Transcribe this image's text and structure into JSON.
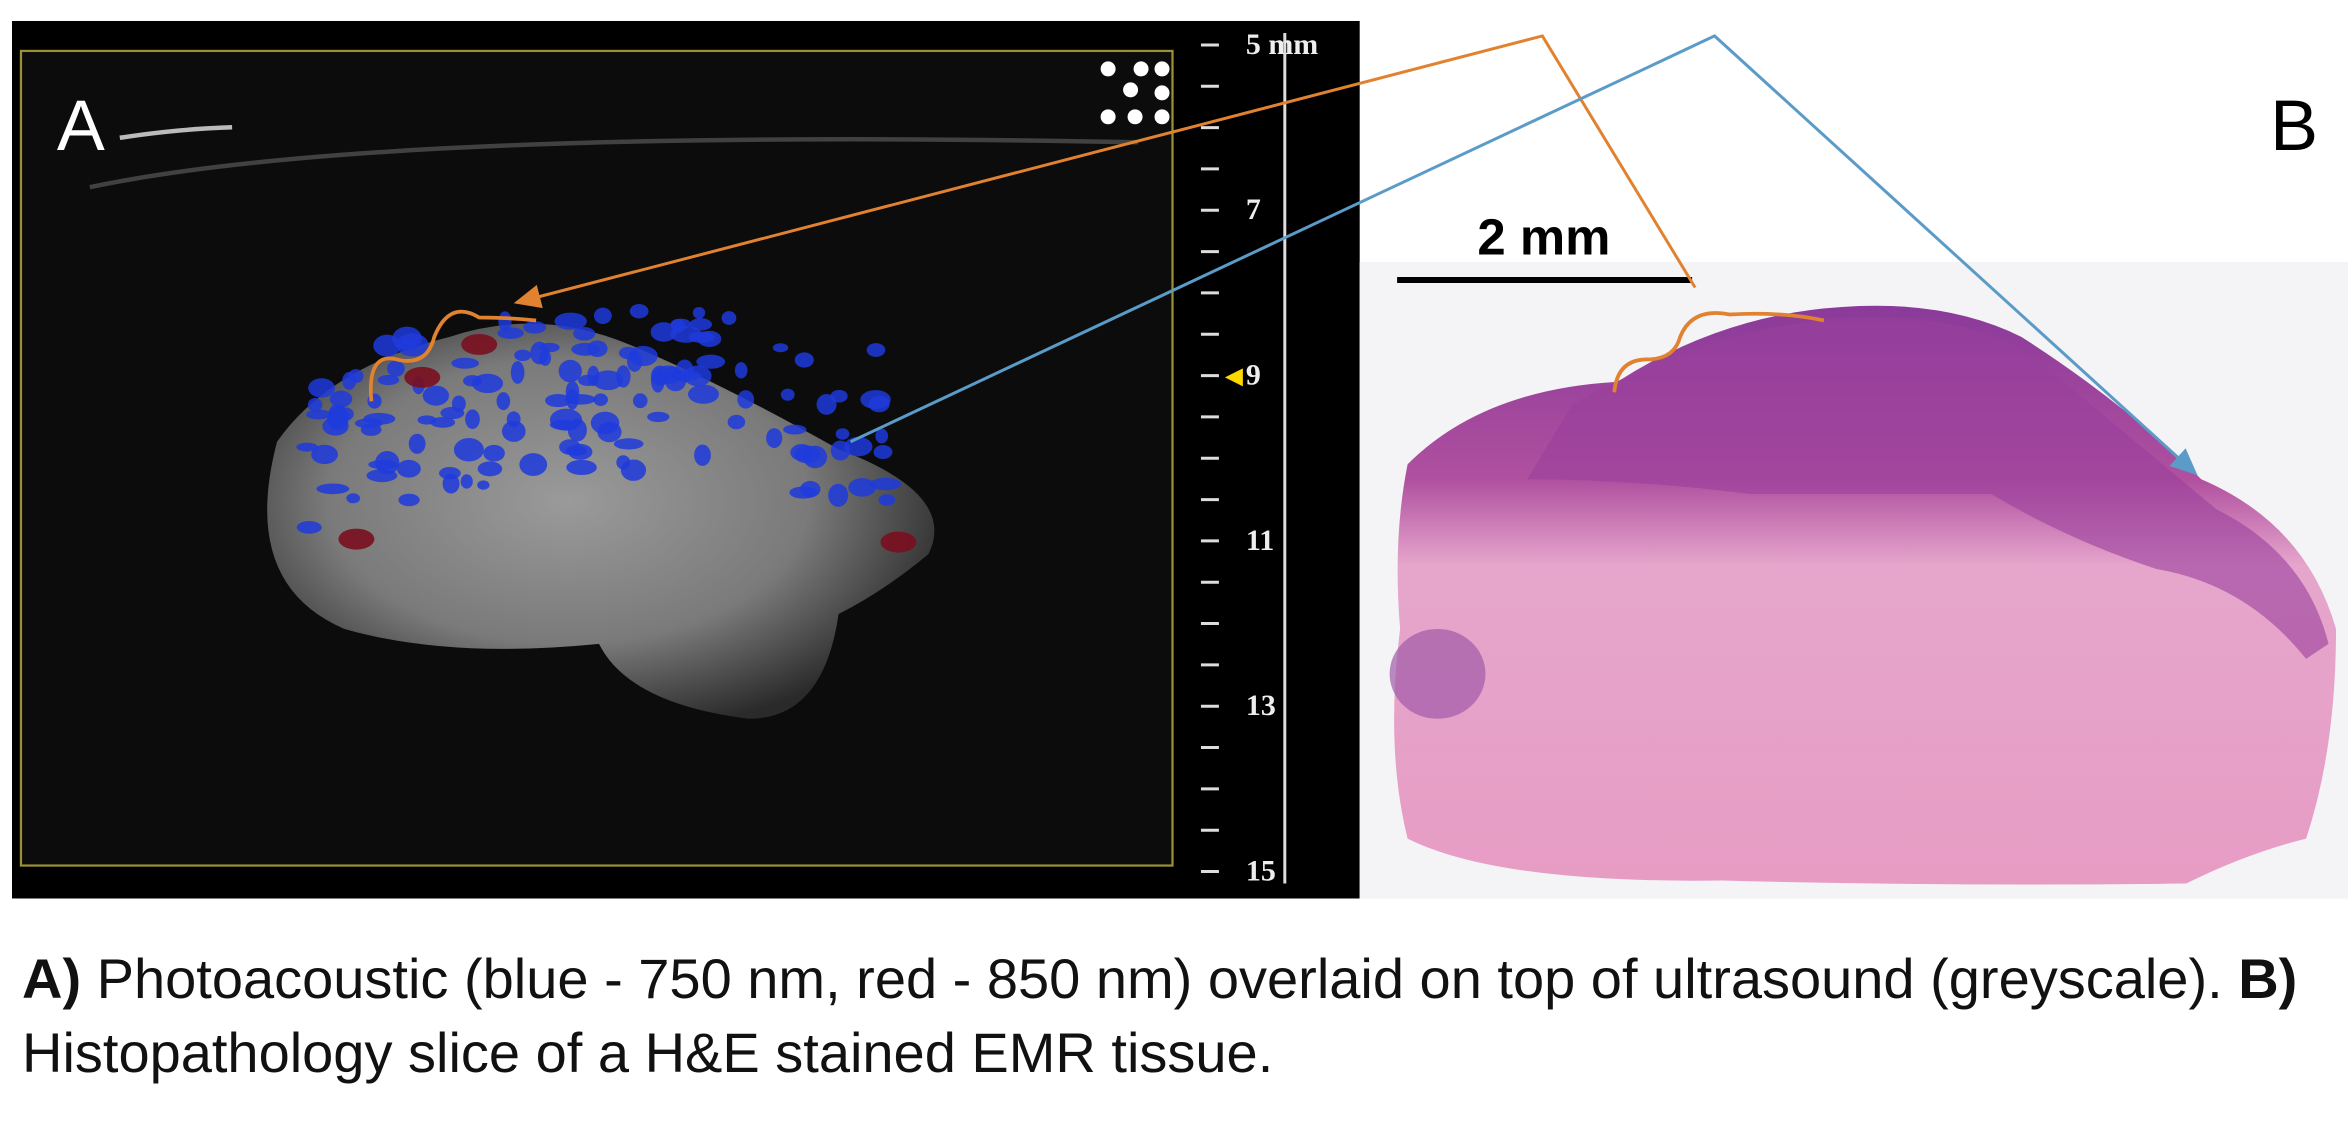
{
  "panel_a": {
    "label": "A",
    "depth_scale": [
      "5 mm",
      "7",
      "9",
      "11",
      "13",
      "15"
    ]
  },
  "panel_b": {
    "label": "B",
    "scale_bar": "2 mm"
  },
  "caption": {
    "part_a_label": "A)",
    "part_a_text": " Photoacoustic (blue - 750 nm, red - 850 nm) overlaid on top of ultrasound (greyscale). ",
    "part_b_label": "B)",
    "part_b_text": " Histopathology slice of a H&E stained EMR tissue."
  }
}
